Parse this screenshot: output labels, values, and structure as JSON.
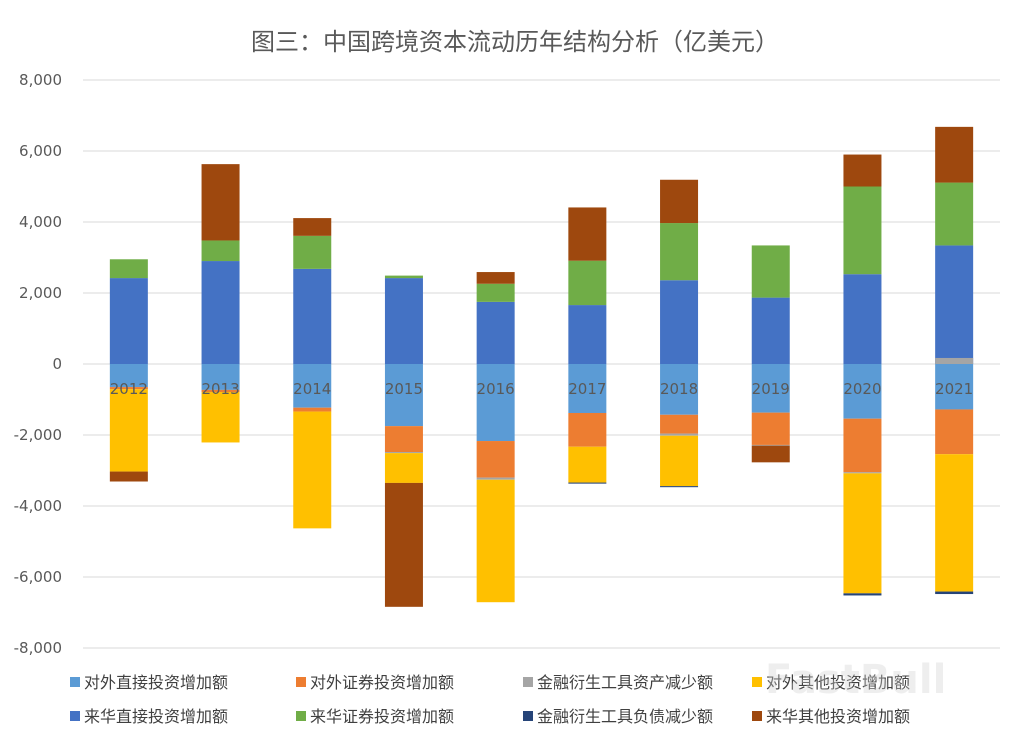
{
  "chart_data": {
    "type": "bar",
    "stacked": true,
    "title": "图三：中国跨境资本流动历年结构分析（亿美元）",
    "xlabel": "",
    "ylabel": "",
    "ylim": [
      -8000,
      8000
    ],
    "yticks": [
      8000,
      6000,
      4000,
      2000,
      0,
      -2000,
      -4000,
      -6000,
      -8000
    ],
    "ytick_labels": [
      "8,000",
      "6,000",
      "4,000",
      "2,000",
      "0",
      "-2,000",
      "-4,000",
      "-6,000",
      "-8,000"
    ],
    "grid": true,
    "legend_position": "bottom",
    "categories": [
      "2012",
      "2013",
      "2014",
      "2015",
      "2016",
      "2017",
      "2018",
      "2019",
      "2020",
      "2021"
    ],
    "series": [
      {
        "name": "对外直接投资增加额",
        "color": "#5B9BD5",
        "values": [
          -650,
          -730,
          -1230,
          -1750,
          -2170,
          -1380,
          -1430,
          -1370,
          -1540,
          -1280
        ]
      },
      {
        "name": "对外证券投资增加额",
        "color": "#ED7D31",
        "values": [
          -60,
          -60,
          -110,
          -730,
          -1030,
          -950,
          -530,
          -910,
          -1510,
          -1260
        ]
      },
      {
        "name": "金融衍生工具资产减少额",
        "color": "#A5A5A5",
        "values": [
          0,
          0,
          0,
          -30,
          -60,
          0,
          -60,
          -20,
          -30,
          0
        ]
      },
      {
        "name": "对外其他投资增加额",
        "color": "#FFC000",
        "values": [
          -2320,
          -1420,
          -3290,
          -840,
          -3450,
          -1010,
          -1420,
          0,
          -3380,
          -3870
        ]
      },
      {
        "name": "来华直接投资增加额",
        "color": "#4472C4",
        "values": [
          2420,
          2900,
          2680,
          2420,
          1750,
          1660,
          2360,
          1870,
          2530,
          3340
        ]
      },
      {
        "name": "来华证券投资增加额",
        "color": "#70AD47",
        "values": [
          530,
          580,
          930,
          70,
          510,
          1250,
          1610,
          1470,
          2470,
          1770
        ]
      },
      {
        "name": "金融衍生工具负债减少额",
        "color": "#264478",
        "values": [
          0,
          0,
          0,
          0,
          0,
          -30,
          -30,
          0,
          -60,
          -70
        ]
      },
      {
        "name": "来华其他投资增加额",
        "color": "#9E480E",
        "values": [
          -280,
          2150,
          500,
          -3490,
          330,
          1500,
          1220,
          -470,
          900,
          1570
        ]
      }
    ],
    "extra_positive": [
      0,
      0,
      0,
      0,
      0,
      0,
      0,
      0,
      0,
      170
    ],
    "extra_positive_color": "#A5A5A5"
  },
  "watermark": "FastBull"
}
